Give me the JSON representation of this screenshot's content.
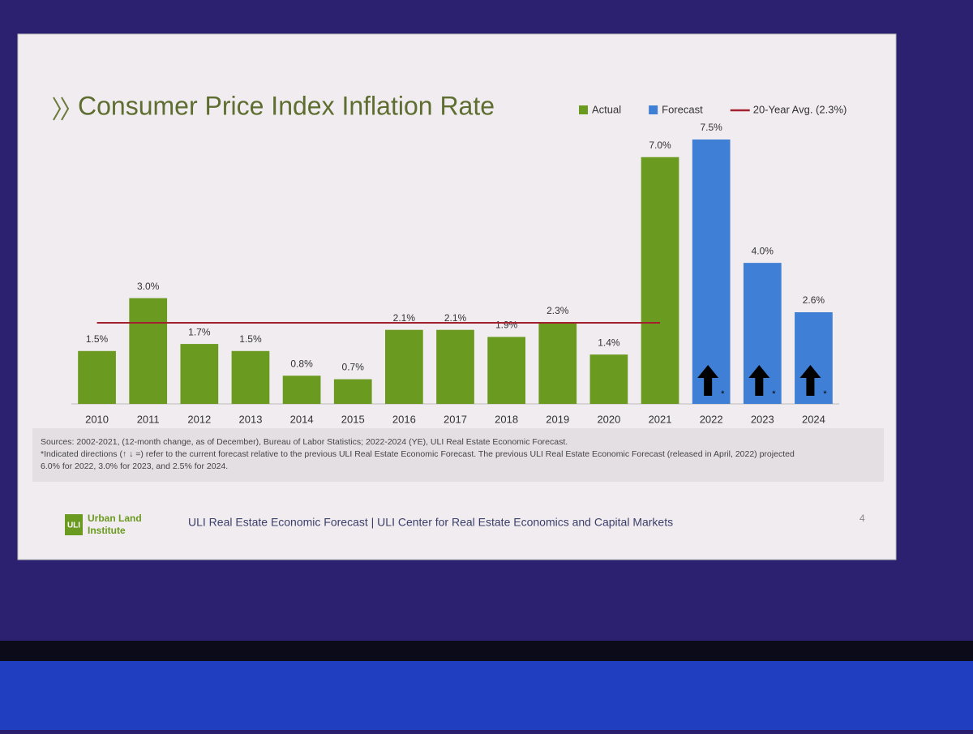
{
  "chart_data": {
    "type": "bar",
    "title": "Consumer Price Index Inflation Rate",
    "categories": [
      "2010",
      "2011",
      "2012",
      "2013",
      "2014",
      "2015",
      "2016",
      "2017",
      "2018",
      "2019",
      "2020",
      "2021",
      "2022",
      "2023",
      "2024"
    ],
    "series": [
      {
        "name": "Actual",
        "color": "#6a9a1f",
        "values": [
          1.5,
          3.0,
          1.7,
          1.5,
          0.8,
          0.7,
          2.1,
          2.1,
          1.9,
          2.3,
          1.4,
          7.0,
          null,
          null,
          null
        ],
        "value_labels": [
          "1.5%",
          "3.0%",
          "1.7%",
          "1.5%",
          "0.8%",
          "0.7%",
          "2.1%",
          "2.1%",
          "1.9%",
          "2.3%",
          "1.4%",
          "7.0%",
          null,
          null,
          null
        ]
      },
      {
        "name": "Forecast",
        "color": "#3f7fd6",
        "values": [
          null,
          null,
          null,
          null,
          null,
          null,
          null,
          null,
          null,
          null,
          null,
          null,
          7.5,
          4.0,
          2.6
        ],
        "value_labels": [
          null,
          null,
          null,
          null,
          null,
          null,
          null,
          null,
          null,
          null,
          null,
          null,
          "7.5%",
          "4.0%",
          "2.6%"
        ]
      }
    ],
    "reference_line": {
      "name": "20-Year Avg. (2.3%)",
      "value": 2.3,
      "color": "#a3202e"
    },
    "forecast_marker": "*",
    "notes": [
      "Sources: 2002-2021, (12-month change, as of December), Bureau of Labor Statistics; 2022-2024 (YE), ULI Real Estate Economic Forecast.",
      "*Indicated directions (↑ ↓ =) refer to the current forecast relative to the previous ULI Real Estate Economic Forecast. The previous ULI Real Estate Economic Forecast (released in April, 2022) projected",
      "6.0% for 2022, 3.0% for 2023, and 2.5% for 2024."
    ]
  },
  "footer": {
    "logo_mark": "ULI",
    "logo_lines": [
      "Urban Land",
      "Institute"
    ],
    "text": "ULI Real Estate Economic Forecast | ULI Center for Real Estate Economics and Capital Markets",
    "page": "4"
  }
}
